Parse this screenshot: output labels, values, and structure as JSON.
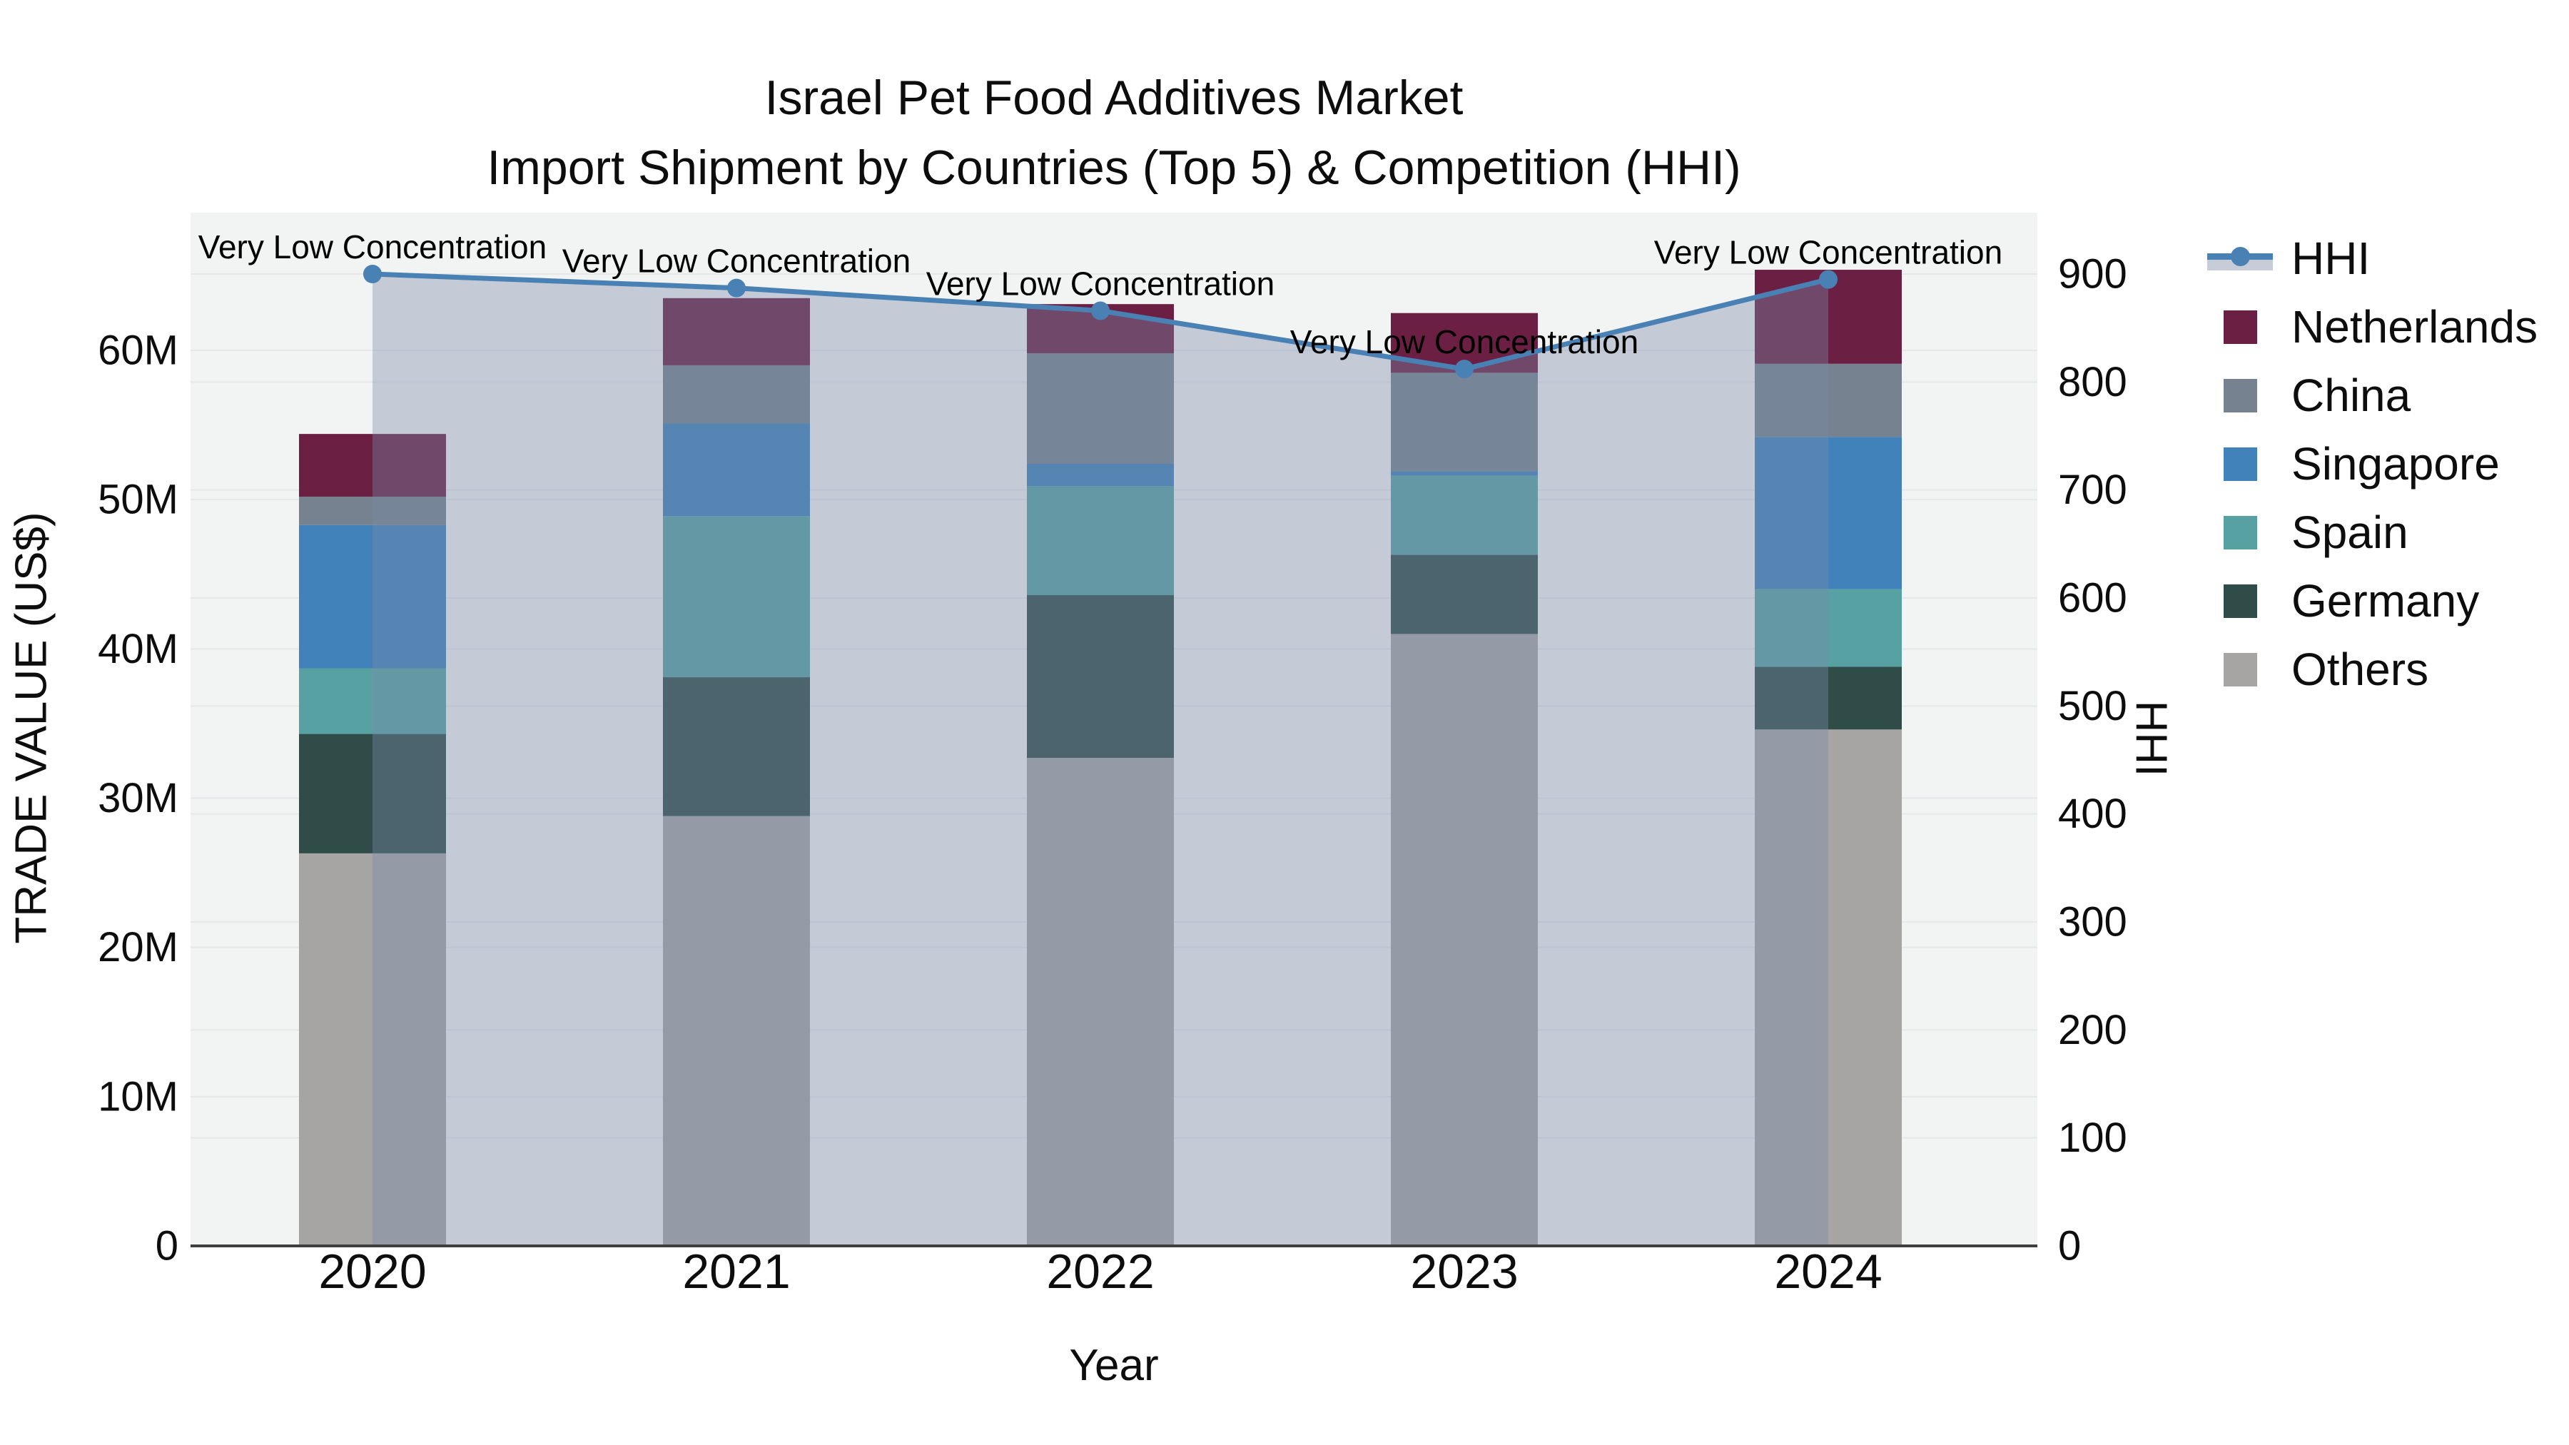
{
  "title": {
    "line1": "Israel Pet Food Additives Market",
    "line2": "Import Shipment by Countries (Top 5) & Competition (HHI)"
  },
  "axes": {
    "x_title": "Year",
    "y_left_title": "TRADE VALUE (US$)",
    "y_right_title": "HHI",
    "y_left_tick_labels": [
      "0",
      "10M",
      "20M",
      "30M",
      "40M",
      "50M",
      "60M"
    ],
    "y_right_tick_labels": [
      "0",
      "100",
      "200",
      "300",
      "400",
      "500",
      "600",
      "700",
      "800",
      "900"
    ]
  },
  "legend": {
    "items": [
      {
        "id": "hhi",
        "label": "HHI",
        "swatch": "line",
        "color": "#4a81b5"
      },
      {
        "id": "netherlands",
        "label": "Netherlands",
        "swatch": "square",
        "color": "#6b1f42"
      },
      {
        "id": "china",
        "label": "China",
        "swatch": "square",
        "color": "#76828f"
      },
      {
        "id": "singapore",
        "label": "Singapore",
        "swatch": "square",
        "color": "#4282ba"
      },
      {
        "id": "spain",
        "label": "Spain",
        "swatch": "square",
        "color": "#58a1a2"
      },
      {
        "id": "germany",
        "label": "Germany",
        "swatch": "square",
        "color": "#2f4c48"
      },
      {
        "id": "others",
        "label": "Others",
        "swatch": "square",
        "color": "#a7a5a3"
      }
    ]
  },
  "chart_data": {
    "type": "bar+line",
    "title": "Israel Pet Food Additives Market — Import Shipment by Countries (Top 5) & Competition (HHI)",
    "categories": [
      "2020",
      "2021",
      "2022",
      "2023",
      "2024"
    ],
    "xlabel": "Year",
    "ylabel_left": "TRADE VALUE (US$)",
    "ylabel_right": "HHI",
    "ylim_left_millions": [
      0,
      69
    ],
    "ylim_right": [
      0,
      957
    ],
    "grid": true,
    "legend_position": "right",
    "bar_unit": "million US$",
    "series_stack_order_bottom_to_top": [
      "Others",
      "Germany",
      "Spain",
      "Singapore",
      "China",
      "Netherlands"
    ],
    "series": [
      {
        "name": "Others",
        "color": "#a7a5a3",
        "values": [
          26.3,
          28.8,
          32.7,
          41.0,
          34.6
        ]
      },
      {
        "name": "Germany",
        "color": "#2f4c48",
        "values": [
          8.0,
          9.3,
          10.9,
          5.3,
          4.2
        ]
      },
      {
        "name": "Spain",
        "color": "#58a1a2",
        "values": [
          4.4,
          10.8,
          7.3,
          5.3,
          5.2
        ]
      },
      {
        "name": "Singapore",
        "color": "#4282ba",
        "values": [
          9.6,
          6.2,
          1.5,
          0.3,
          10.2
        ]
      },
      {
        "name": "China",
        "color": "#76828f",
        "values": [
          1.9,
          3.9,
          7.4,
          6.6,
          4.9
        ]
      },
      {
        "name": "Netherlands",
        "color": "#6b1f42",
        "values": [
          4.2,
          4.5,
          3.3,
          4.0,
          6.3
        ]
      }
    ],
    "bar_totals_millions": [
      54.4,
      63.5,
      63.1,
      62.5,
      65.4
    ],
    "hhi_line": {
      "name": "HHI",
      "color": "#4a81b5",
      "area_fill": "rgba(120,140,172,0.38)",
      "values": [
        900,
        887,
        866,
        812,
        895
      ]
    },
    "annotations": [
      {
        "category": "2020",
        "text": "Very Low Concentration"
      },
      {
        "category": "2021",
        "text": "Very Low Concentration"
      },
      {
        "category": "2022",
        "text": "Very Low Concentration"
      },
      {
        "category": "2023",
        "text": "Very Low Concentration"
      },
      {
        "category": "2024",
        "text": "Very Low Concentration"
      }
    ],
    "colors": {
      "plot_background": "#f2f3f3",
      "gridline": "#e6e7e9",
      "axis_line": "#3f3f3f",
      "text": "#0d0d0d"
    }
  }
}
